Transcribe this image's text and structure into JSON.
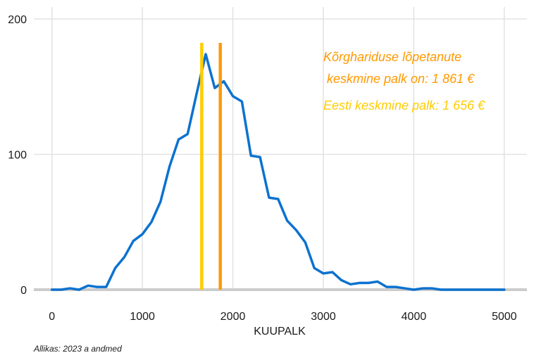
{
  "colors": {
    "series": "#0c72cf",
    "median_line": "#ffcc00",
    "grad_line": "#ff9900",
    "baseline": "#cccccc",
    "grid": "#e3e3e3",
    "text": "#1a1a1a"
  },
  "chart_data": {
    "type": "line",
    "title": "",
    "xlabel": "KUUPALK",
    "ylabel": "",
    "xlim": [
      -200,
      5250
    ],
    "ylim": [
      0,
      200
    ],
    "x_ticks": [
      0,
      1000,
      2000,
      3000,
      4000,
      5000
    ],
    "y_ticks": [
      0,
      100,
      200
    ],
    "grid": true,
    "series": [
      {
        "x": [
          0,
          100,
          200,
          300,
          400,
          500,
          600,
          700,
          800,
          900,
          1000,
          1100,
          1200,
          1300,
          1400,
          1500,
          1600,
          1700,
          1800,
          1900,
          2000,
          2100,
          2200,
          2300,
          2400,
          2500,
          2600,
          2700,
          2800,
          2900,
          3000,
          3100,
          3200,
          3300,
          3400,
          3500,
          3600,
          3700,
          3800,
          3900,
          4000,
          4100,
          4200,
          4300,
          4400,
          4500,
          4600,
          4700,
          4800,
          4900,
          5000
        ],
        "values": [
          0,
          0,
          1,
          0,
          3,
          2,
          2,
          16,
          24,
          36,
          41,
          50,
          65,
          91,
          111,
          115,
          145,
          174,
          149,
          154,
          143,
          139,
          99,
          98,
          68,
          67,
          51,
          44,
          35,
          16,
          12,
          13,
          7,
          4,
          5,
          5,
          6,
          2,
          2,
          1,
          0,
          1,
          1,
          0,
          0,
          0,
          0,
          0,
          0,
          0,
          0
        ]
      }
    ],
    "vertical_lines": [
      {
        "x": 1656,
        "color": "#ffcc00"
      },
      {
        "x": 1861,
        "color": "#ff9900"
      }
    ],
    "annotations": {
      "grad_line1": "Kõrghariduse lõpetanute",
      "grad_line2": " keskmine palk on: 1 861 €",
      "median": "Eesti keskmine palk: 1 656 €"
    },
    "source": "Allikas: 2023 a andmed"
  }
}
